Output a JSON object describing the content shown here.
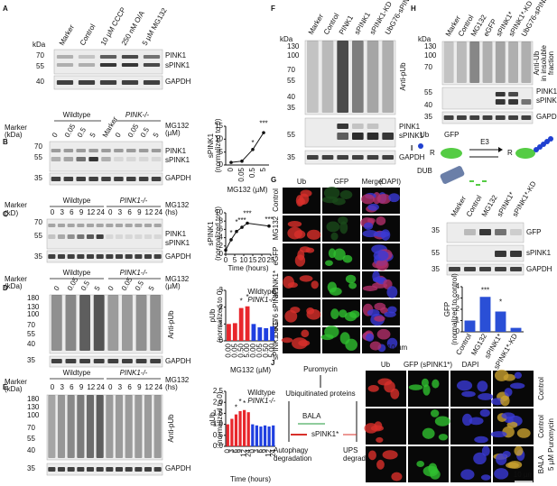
{
  "panel_labels": [
    "A",
    "B",
    "C",
    "D",
    "E",
    "F",
    "G",
    "H",
    "I",
    "J"
  ],
  "A": {
    "lanes": [
      "Marker",
      "Control",
      "10 µM CCCP",
      "250 nM O/A",
      "5 µM MG132"
    ],
    "kda_label": "kDa",
    "kda": [
      70,
      55,
      40
    ],
    "bands": [
      "PINK1",
      "sPINK1",
      "GAPDH"
    ]
  },
  "B": {
    "groups": [
      "Wildtype",
      "PINK-/-"
    ],
    "marker_label": [
      "Marker",
      "(kDa)"
    ],
    "treatment": [
      "MG132",
      "(µM)"
    ],
    "lanes": [
      "0",
      "0.05",
      "0.5",
      "5",
      "Marker",
      "0",
      "0.05",
      "0.5",
      "5"
    ],
    "kda": [
      70,
      55,
      35
    ],
    "bands": [
      "PINK1",
      "sPINK1",
      "GAPDH"
    ]
  },
  "C": {
    "groups": [
      "Wildtype",
      "PINK1-/-"
    ],
    "marker_label": [
      "Marker",
      "(kD)"
    ],
    "treatment": [
      "MG132",
      "(hs)"
    ],
    "lanes": [
      "0",
      "3",
      "6",
      "9",
      "12",
      "24",
      "0",
      "3",
      "6",
      "9",
      "12",
      "24"
    ],
    "kda": [
      70,
      55,
      35
    ],
    "bands": [
      "PINK1",
      "sPINK1",
      "GAPDH"
    ]
  },
  "D": {
    "groups": [
      "Wildtype",
      "PINK1-/-"
    ],
    "marker_label": [
      "Marker",
      "(kDa)"
    ],
    "treatment": [
      "MG132",
      "(µM)"
    ],
    "lanes": [
      "0",
      "0.05",
      "0.5",
      "5",
      "0",
      "0.05",
      "0.5",
      "5"
    ],
    "kda": [
      180,
      130,
      100,
      70,
      55,
      40,
      35
    ],
    "bands": [
      "Anti-pUb",
      "GAPDH"
    ]
  },
  "E": {
    "groups": [
      "Wildtype",
      "PINK1-/-"
    ],
    "marker_label": [
      "Marker",
      "(kDa)"
    ],
    "treatment": [
      "MG132",
      "(hs)"
    ],
    "lanes": [
      "0",
      "3",
      "6",
      "9",
      "12",
      "24",
      "0",
      "3",
      "6",
      "9",
      "12",
      "24"
    ],
    "kda": [
      180,
      130,
      100,
      70,
      55,
      40,
      35
    ],
    "bands": [
      "Anti-pUb",
      "GAPDH"
    ]
  },
  "F": {
    "lanes": [
      "Marker",
      "Control",
      "PINK1",
      "sPINK1",
      "sPINK1-KD",
      "UbG76-sPINK1"
    ],
    "kda_label": "kDa",
    "kda": [
      130,
      100,
      70,
      55,
      40,
      35,
      55,
      35
    ],
    "bands": [
      "Anti-pUb",
      "PINK1",
      "sPINK1",
      "GAPDH"
    ]
  },
  "G": {
    "headers": [
      "Ub",
      "GFP",
      "Merge",
      "(DAPI)"
    ],
    "rows": [
      "Control",
      "MG132",
      "eGFP",
      "sPINK1*",
      "UbG76 sPINK1",
      "sPINK1*-KD"
    ],
    "scale": "10 µm"
  },
  "H": {
    "lanes": [
      "Marker",
      "Control",
      "MG132",
      "eGFP",
      "sPINK1*",
      "sPINK1*-KD",
      "UbG76-sPINK1"
    ],
    "kda_label": "kDa",
    "kda": [
      130,
      100,
      70,
      55,
      40,
      35
    ],
    "bands": [
      "Anti-Ub",
      "in insoluble",
      "fraction",
      "PINK1",
      "sPINK1",
      "GAPDH"
    ]
  },
  "I": {
    "diagram": {
      "ub": "Ub",
      "gfp": "GFP",
      "e3": "E3",
      "r": [
        "R",
        "R"
      ],
      "dub": "DUB"
    },
    "lanes": [
      "Marker",
      "Control",
      "MG132",
      "sPINK1*",
      "sPINK1*-KD"
    ],
    "kda": [
      35,
      55,
      35
    ],
    "bands": [
      "GFP",
      "sPINK1",
      "GAPDH"
    ]
  },
  "J": {
    "diagram": {
      "puromycin": "Puromycin",
      "proteins": "Ubiquitinated proteins",
      "bala": "BALA",
      "spink1": "sPINK1*",
      "autophagy": [
        "Autophagy",
        "degradation"
      ],
      "ups": [
        "UPS",
        "degradation"
      ]
    },
    "headers": [
      "Ub",
      "GFP (sPINK1*)",
      "DAPI"
    ],
    "rows": [
      "Control",
      "Control",
      "BALA"
    ],
    "treatment": "5 µM Puromycin",
    "scale": "10 µm"
  },
  "chart_data": [
    {
      "type": "line",
      "y_label": [
        "sPINK1",
        "(normalized to 0)"
      ],
      "x_label": "MG132 (µM)",
      "categories": [
        "0",
        "0.05",
        "0.5",
        "5"
      ],
      "values": [
        1,
        1.5,
        6,
        12.5
      ],
      "color": "#111111",
      "ylim": [
        0,
        15
      ],
      "yticks": [
        0,
        5,
        10,
        15
      ],
      "annotations": [
        "*",
        "***"
      ]
    },
    {
      "type": "line",
      "y_label": [
        "sPINK1",
        "(normalized to 0)"
      ],
      "x_label": "Time (hours)",
      "x": [
        0,
        3,
        6,
        9,
        12,
        24
      ],
      "values": [
        1,
        3.5,
        5.5,
        6.5,
        7.5,
        6.8
      ],
      "color": "#111111",
      "xlim": [
        0,
        25
      ],
      "xticks": [
        0,
        5,
        10,
        15,
        20,
        25
      ],
      "ylim": [
        0,
        10
      ],
      "yticks": [
        0,
        2,
        4,
        6,
        8,
        10
      ],
      "annotations": [
        "*",
        "*",
        "***",
        "***",
        "***"
      ]
    },
    {
      "type": "bar",
      "y_label": [
        "pUb",
        "(normalized to 0)"
      ],
      "x_label": "MG132 (µM)",
      "categories": [
        "0.00",
        "0.05",
        "0.50",
        "5.00"
      ],
      "series": [
        {
          "name": "Wildtype",
          "color": "#e8262b",
          "values": [
            1,
            1.05,
            1.95,
            2.05
          ]
        },
        {
          "name": "PINK1-/-",
          "color": "#1f3fe0",
          "values": [
            1,
            0.8,
            0.75,
            0.85
          ]
        }
      ],
      "ylim": [
        0,
        3
      ],
      "yticks": [
        0,
        1,
        2,
        3
      ],
      "legend": "upper right",
      "annotations": [
        "*",
        "*"
      ]
    },
    {
      "type": "bar",
      "y_label": [
        "pUb",
        "(normalized to 0)"
      ],
      "x_label": "Time (hours)",
      "categories": [
        "0",
        "3",
        "6",
        "9",
        "12",
        "24"
      ],
      "series": [
        {
          "name": "Wildtype",
          "color": "#e8262b",
          "values": [
            1,
            1.25,
            1.45,
            1.6,
            1.65,
            1.55
          ]
        },
        {
          "name": "PINK1-/-",
          "color": "#1f3fe0",
          "values": [
            1,
            0.95,
            0.9,
            0.95,
            0.9,
            0.95
          ]
        }
      ],
      "ylim": [
        0,
        2.5
      ],
      "yticks": [
        {
          "value": 0,
          "label": "0.0"
        },
        0.5,
        {
          "value": 1,
          "label": "1.0"
        },
        1.5,
        {
          "value": 2,
          "label": "2.0"
        },
        2.5
      ],
      "legend": "upper right",
      "annotations": [
        "*",
        "*",
        "*"
      ]
    },
    {
      "type": "bar",
      "y_label": [
        "GFP",
        "(normalized to control)"
      ],
      "categories": [
        "Control",
        "MG132",
        "sPINK1*",
        "sPINK1*-KD"
      ],
      "values": [
        1,
        3.1,
        1.8,
        0.35
      ],
      "color": "#2a4fd6",
      "ylim": [
        0,
        4
      ],
      "yticks": [
        0,
        1,
        2,
        3,
        4
      ],
      "annotations": [
        "***",
        "*"
      ]
    }
  ]
}
